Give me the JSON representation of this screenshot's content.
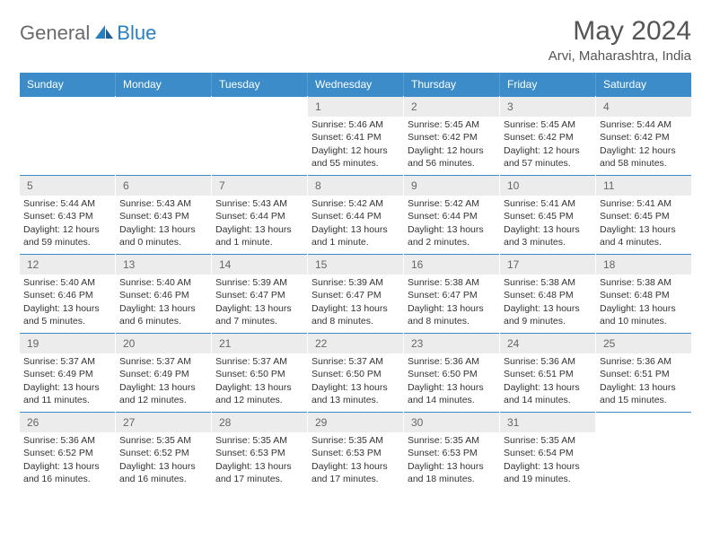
{
  "logo": {
    "general": "General",
    "blue": "Blue"
  },
  "title": "May 2024",
  "location": "Arvi, Maharashtra, India",
  "weekdays": [
    "Sunday",
    "Monday",
    "Tuesday",
    "Wednesday",
    "Thursday",
    "Friday",
    "Saturday"
  ],
  "colors": {
    "header_bg": "#3b8cc9",
    "daynum_bg": "#ececec",
    "accent": "#2a7fbf",
    "text": "#333333"
  },
  "weeks": [
    [
      null,
      null,
      null,
      {
        "n": "1",
        "sr": "Sunrise: 5:46 AM",
        "ss": "Sunset: 6:41 PM",
        "dl": "Daylight: 12 hours and 55 minutes."
      },
      {
        "n": "2",
        "sr": "Sunrise: 5:45 AM",
        "ss": "Sunset: 6:42 PM",
        "dl": "Daylight: 12 hours and 56 minutes."
      },
      {
        "n": "3",
        "sr": "Sunrise: 5:45 AM",
        "ss": "Sunset: 6:42 PM",
        "dl": "Daylight: 12 hours and 57 minutes."
      },
      {
        "n": "4",
        "sr": "Sunrise: 5:44 AM",
        "ss": "Sunset: 6:42 PM",
        "dl": "Daylight: 12 hours and 58 minutes."
      }
    ],
    [
      {
        "n": "5",
        "sr": "Sunrise: 5:44 AM",
        "ss": "Sunset: 6:43 PM",
        "dl": "Daylight: 12 hours and 59 minutes."
      },
      {
        "n": "6",
        "sr": "Sunrise: 5:43 AM",
        "ss": "Sunset: 6:43 PM",
        "dl": "Daylight: 13 hours and 0 minutes."
      },
      {
        "n": "7",
        "sr": "Sunrise: 5:43 AM",
        "ss": "Sunset: 6:44 PM",
        "dl": "Daylight: 13 hours and 1 minute."
      },
      {
        "n": "8",
        "sr": "Sunrise: 5:42 AM",
        "ss": "Sunset: 6:44 PM",
        "dl": "Daylight: 13 hours and 1 minute."
      },
      {
        "n": "9",
        "sr": "Sunrise: 5:42 AM",
        "ss": "Sunset: 6:44 PM",
        "dl": "Daylight: 13 hours and 2 minutes."
      },
      {
        "n": "10",
        "sr": "Sunrise: 5:41 AM",
        "ss": "Sunset: 6:45 PM",
        "dl": "Daylight: 13 hours and 3 minutes."
      },
      {
        "n": "11",
        "sr": "Sunrise: 5:41 AM",
        "ss": "Sunset: 6:45 PM",
        "dl": "Daylight: 13 hours and 4 minutes."
      }
    ],
    [
      {
        "n": "12",
        "sr": "Sunrise: 5:40 AM",
        "ss": "Sunset: 6:46 PM",
        "dl": "Daylight: 13 hours and 5 minutes."
      },
      {
        "n": "13",
        "sr": "Sunrise: 5:40 AM",
        "ss": "Sunset: 6:46 PM",
        "dl": "Daylight: 13 hours and 6 minutes."
      },
      {
        "n": "14",
        "sr": "Sunrise: 5:39 AM",
        "ss": "Sunset: 6:47 PM",
        "dl": "Daylight: 13 hours and 7 minutes."
      },
      {
        "n": "15",
        "sr": "Sunrise: 5:39 AM",
        "ss": "Sunset: 6:47 PM",
        "dl": "Daylight: 13 hours and 8 minutes."
      },
      {
        "n": "16",
        "sr": "Sunrise: 5:38 AM",
        "ss": "Sunset: 6:47 PM",
        "dl": "Daylight: 13 hours and 8 minutes."
      },
      {
        "n": "17",
        "sr": "Sunrise: 5:38 AM",
        "ss": "Sunset: 6:48 PM",
        "dl": "Daylight: 13 hours and 9 minutes."
      },
      {
        "n": "18",
        "sr": "Sunrise: 5:38 AM",
        "ss": "Sunset: 6:48 PM",
        "dl": "Daylight: 13 hours and 10 minutes."
      }
    ],
    [
      {
        "n": "19",
        "sr": "Sunrise: 5:37 AM",
        "ss": "Sunset: 6:49 PM",
        "dl": "Daylight: 13 hours and 11 minutes."
      },
      {
        "n": "20",
        "sr": "Sunrise: 5:37 AM",
        "ss": "Sunset: 6:49 PM",
        "dl": "Daylight: 13 hours and 12 minutes."
      },
      {
        "n": "21",
        "sr": "Sunrise: 5:37 AM",
        "ss": "Sunset: 6:50 PM",
        "dl": "Daylight: 13 hours and 12 minutes."
      },
      {
        "n": "22",
        "sr": "Sunrise: 5:37 AM",
        "ss": "Sunset: 6:50 PM",
        "dl": "Daylight: 13 hours and 13 minutes."
      },
      {
        "n": "23",
        "sr": "Sunrise: 5:36 AM",
        "ss": "Sunset: 6:50 PM",
        "dl": "Daylight: 13 hours and 14 minutes."
      },
      {
        "n": "24",
        "sr": "Sunrise: 5:36 AM",
        "ss": "Sunset: 6:51 PM",
        "dl": "Daylight: 13 hours and 14 minutes."
      },
      {
        "n": "25",
        "sr": "Sunrise: 5:36 AM",
        "ss": "Sunset: 6:51 PM",
        "dl": "Daylight: 13 hours and 15 minutes."
      }
    ],
    [
      {
        "n": "26",
        "sr": "Sunrise: 5:36 AM",
        "ss": "Sunset: 6:52 PM",
        "dl": "Daylight: 13 hours and 16 minutes."
      },
      {
        "n": "27",
        "sr": "Sunrise: 5:35 AM",
        "ss": "Sunset: 6:52 PM",
        "dl": "Daylight: 13 hours and 16 minutes."
      },
      {
        "n": "28",
        "sr": "Sunrise: 5:35 AM",
        "ss": "Sunset: 6:53 PM",
        "dl": "Daylight: 13 hours and 17 minutes."
      },
      {
        "n": "29",
        "sr": "Sunrise: 5:35 AM",
        "ss": "Sunset: 6:53 PM",
        "dl": "Daylight: 13 hours and 17 minutes."
      },
      {
        "n": "30",
        "sr": "Sunrise: 5:35 AM",
        "ss": "Sunset: 6:53 PM",
        "dl": "Daylight: 13 hours and 18 minutes."
      },
      {
        "n": "31",
        "sr": "Sunrise: 5:35 AM",
        "ss": "Sunset: 6:54 PM",
        "dl": "Daylight: 13 hours and 19 minutes."
      },
      null
    ]
  ]
}
